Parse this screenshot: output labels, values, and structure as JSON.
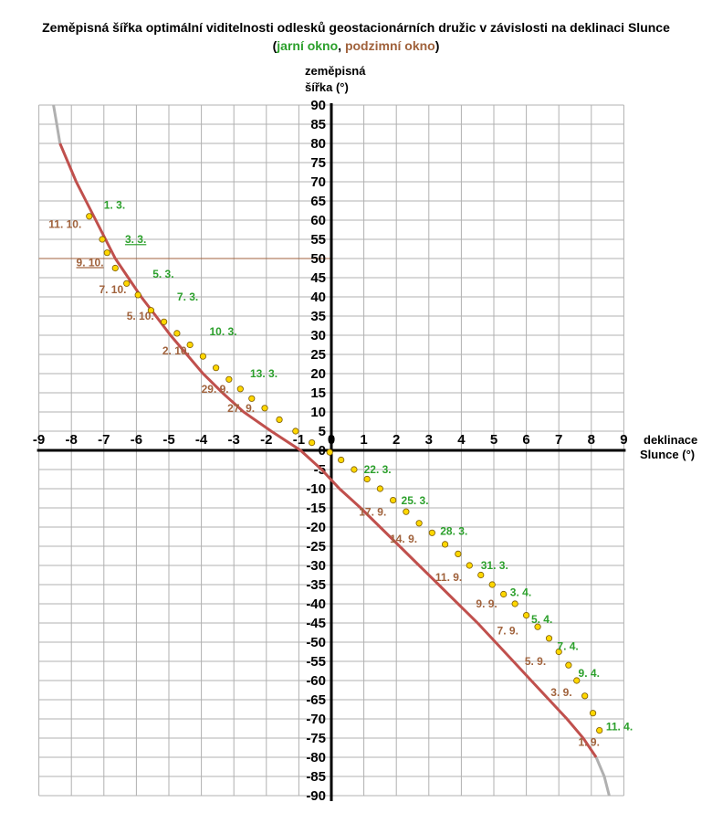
{
  "title": "Zeměpisná šířka optimální viditelnosti odlesků geostacionárních družic v závislosti na deklinaci Slunce",
  "subtitle": {
    "open": "(",
    "spring": "jarní okno",
    "sep": ", ",
    "autumn": "podzimní okno",
    "close": ")"
  },
  "colors": {
    "spring": "#2ca02c",
    "autumn": "#a0623c",
    "curve": "#c0504d",
    "curve_ext": "#b0b0b0",
    "grid": "#b0b0b0",
    "point": "#ffd700"
  },
  "chart_data": {
    "type": "line",
    "xlabel": [
      "deklinace",
      "Slunce (°)"
    ],
    "ylabel": [
      "zeměpisná",
      "šířka (°)"
    ],
    "xlim": [
      -9,
      9
    ],
    "ylim": [
      -90,
      90
    ],
    "x_ticks": [
      -9,
      -8,
      -7,
      -6,
      -5,
      -4,
      -3,
      -2,
      -1,
      0,
      1,
      2,
      3,
      4,
      5,
      6,
      7,
      8,
      9
    ],
    "y_ticks": [
      90,
      85,
      80,
      75,
      70,
      65,
      60,
      55,
      50,
      45,
      40,
      35,
      30,
      25,
      20,
      15,
      10,
      5,
      0,
      -5,
      -10,
      -15,
      -20,
      -25,
      -30,
      -35,
      -40,
      -45,
      -50,
      -55,
      -60,
      -65,
      -70,
      -75,
      -80,
      -85,
      -90
    ],
    "grid": true,
    "reference_line": {
      "y": 50
    },
    "curve": [
      [
        -8.55,
        90
      ],
      [
        -8.45,
        85
      ],
      [
        -8.35,
        80
      ],
      [
        -8.1,
        75
      ],
      [
        -7.85,
        70
      ],
      [
        -7.55,
        65
      ],
      [
        -7.25,
        60
      ],
      [
        -6.95,
        55
      ],
      [
        -6.65,
        50
      ],
      [
        -6.25,
        45
      ],
      [
        -5.85,
        40
      ],
      [
        -5.4,
        35
      ],
      [
        -4.95,
        30
      ],
      [
        -4.45,
        25
      ],
      [
        -3.95,
        20
      ],
      [
        -3.35,
        15
      ],
      [
        -2.7,
        10
      ],
      [
        -1.85,
        5
      ],
      [
        -0.95,
        0
      ],
      [
        -0.3,
        -5
      ],
      [
        0.25,
        -10
      ],
      [
        0.9,
        -15
      ],
      [
        1.5,
        -20
      ],
      [
        2.1,
        -25
      ],
      [
        2.7,
        -30
      ],
      [
        3.3,
        -35
      ],
      [
        3.9,
        -40
      ],
      [
        4.5,
        -45
      ],
      [
        5.05,
        -50
      ],
      [
        5.6,
        -55
      ],
      [
        6.15,
        -60
      ],
      [
        6.7,
        -65
      ],
      [
        7.25,
        -70
      ],
      [
        7.75,
        -75
      ],
      [
        8.15,
        -80
      ],
      [
        8.4,
        -85
      ],
      [
        8.55,
        -90
      ]
    ],
    "points": [
      [
        -7.45,
        61
      ],
      [
        -7.05,
        55
      ],
      [
        -6.9,
        51.5
      ],
      [
        -6.65,
        47.5
      ],
      [
        -6.3,
        43.5
      ],
      [
        -5.95,
        40.5
      ],
      [
        -5.55,
        36.5
      ],
      [
        -5.15,
        33.5
      ],
      [
        -4.75,
        30.5
      ],
      [
        -4.35,
        27.5
      ],
      [
        -3.95,
        24.5
      ],
      [
        -3.55,
        21.5
      ],
      [
        -3.15,
        18.5
      ],
      [
        -2.8,
        16
      ],
      [
        -2.45,
        13.5
      ],
      [
        -2.05,
        11
      ],
      [
        -1.6,
        8
      ],
      [
        -1.1,
        5
      ],
      [
        -0.6,
        2
      ],
      [
        -0.05,
        -0.5
      ],
      [
        0.3,
        -2.5
      ],
      [
        0.7,
        -5
      ],
      [
        1.1,
        -7.5
      ],
      [
        1.5,
        -10
      ],
      [
        1.9,
        -13
      ],
      [
        2.3,
        -16
      ],
      [
        2.7,
        -19
      ],
      [
        3.1,
        -21.5
      ],
      [
        3.5,
        -24.5
      ],
      [
        3.9,
        -27
      ],
      [
        4.25,
        -30
      ],
      [
        4.6,
        -32.5
      ],
      [
        4.95,
        -35
      ],
      [
        5.3,
        -37.5
      ],
      [
        5.65,
        -40
      ],
      [
        6.0,
        -43
      ],
      [
        6.35,
        -46
      ],
      [
        6.7,
        -49
      ],
      [
        7.0,
        -52.5
      ],
      [
        7.3,
        -56
      ],
      [
        7.55,
        -60
      ],
      [
        7.8,
        -64
      ],
      [
        8.05,
        -68.5
      ],
      [
        8.25,
        -73
      ]
    ],
    "spring_labels": [
      {
        "text": "1. 3.",
        "x": -7.0,
        "y": 63
      },
      {
        "text": "3. 3.",
        "x": -6.35,
        "y": 54
      },
      {
        "text": "5. 3.",
        "x": -5.5,
        "y": 45
      },
      {
        "text": "7. 3.",
        "x": -4.75,
        "y": 39
      },
      {
        "text": "10. 3.",
        "x": -3.75,
        "y": 30
      },
      {
        "text": "13. 3.",
        "x": -2.5,
        "y": 19
      },
      {
        "text": "22. 3.",
        "x": 1.0,
        "y": -6
      },
      {
        "text": "25. 3.",
        "x": 2.15,
        "y": -14
      },
      {
        "text": "28. 3.",
        "x": 3.35,
        "y": -22
      },
      {
        "text": "31. 3.",
        "x": 4.6,
        "y": -31
      },
      {
        "text": "3. 4.",
        "x": 5.5,
        "y": -38
      },
      {
        "text": "5. 4.",
        "x": 6.15,
        "y": -45
      },
      {
        "text": "7. 4.",
        "x": 6.95,
        "y": -52
      },
      {
        "text": "9. 4.",
        "x": 7.6,
        "y": -59
      },
      {
        "text": "11. 4.",
        "x": 8.45,
        "y": -73
      }
    ],
    "autumn_labels": [
      {
        "text": "11. 10.",
        "x": -8.7,
        "y": 58
      },
      {
        "text": "9. 10.",
        "x": -7.85,
        "y": 48
      },
      {
        "text": "7. 10.",
        "x": -7.15,
        "y": 41
      },
      {
        "text": "5. 10.",
        "x": -6.3,
        "y": 34
      },
      {
        "text": "2. 10.",
        "x": -5.2,
        "y": 25
      },
      {
        "text": "29. 9.",
        "x": -4.0,
        "y": 15
      },
      {
        "text": "27. 9.",
        "x": -3.2,
        "y": 10
      },
      {
        "text": "17. 9.",
        "x": 0.85,
        "y": -17
      },
      {
        "text": "14. 9.",
        "x": 1.8,
        "y": -24
      },
      {
        "text": "11. 9.",
        "x": 3.2,
        "y": -34
      },
      {
        "text": "9. 9.",
        "x": 4.45,
        "y": -41
      },
      {
        "text": "7. 9.",
        "x": 5.1,
        "y": -48
      },
      {
        "text": "5. 9.",
        "x": 5.95,
        "y": -56
      },
      {
        "text": "3. 9.",
        "x": 6.75,
        "y": -64
      },
      {
        "text": "1. 9.",
        "x": 7.6,
        "y": -77
      }
    ]
  }
}
